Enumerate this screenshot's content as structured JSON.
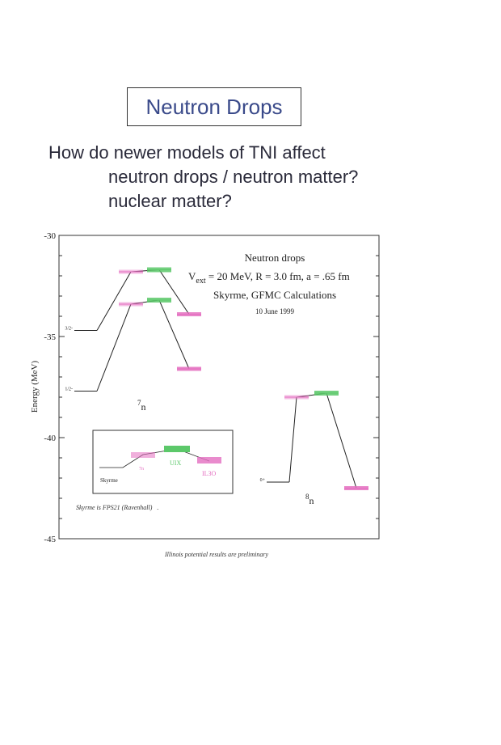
{
  "page": {
    "title": "Neutron Drops",
    "question_lines": [
      "How do newer models of TNI affect",
      "neutron drops / neutron matter?",
      "nuclear matter?"
    ],
    "footnote": "Illinois potential results are preliminary"
  },
  "chart_data": {
    "type": "line",
    "title": "Neutron drops",
    "subtitle_lines": [
      "V",
      "ext",
      " = 20 MeV, R = 3.0 fm, a = .65 fm"
    ],
    "subtitle2": "Skyrme, GFMC Calculations",
    "date": "10 June 1999",
    "ylabel": "Energy (MeV)",
    "ylim": [
      -45,
      -30
    ],
    "yticks": [
      -30,
      -35,
      -40,
      -45
    ],
    "colors": {
      "axis": "#333333",
      "line": "#222222",
      "green": "#5cc86a",
      "pink": "#e46ec0"
    },
    "series": [
      {
        "label": "3/2-",
        "points": [
          {
            "x": 1,
            "y": -34.7,
            "kind": "plain"
          },
          {
            "x": 2,
            "y": -31.8,
            "kind": "pink"
          },
          {
            "x": 3,
            "y": -31.7,
            "kind": "green"
          },
          {
            "x": 4,
            "y": -33.9,
            "kind": "pink"
          }
        ]
      },
      {
        "label": "1/2-",
        "points": [
          {
            "x": 1,
            "y": -37.7,
            "kind": "plain"
          },
          {
            "x": 2,
            "y": -33.4,
            "kind": "pink"
          },
          {
            "x": 3,
            "y": -33.2,
            "kind": "green"
          },
          {
            "x": 4,
            "y": -36.6,
            "kind": "pink"
          }
        ]
      },
      {
        "label": "0+",
        "points": [
          {
            "x": 1,
            "y": -42.2,
            "kind": "plain"
          },
          {
            "x": 2,
            "y": -38.0,
            "kind": "pink"
          },
          {
            "x": 3,
            "y": -37.8,
            "kind": "green"
          },
          {
            "x": 4,
            "y": -42.5,
            "kind": "pink"
          }
        ]
      }
    ],
    "nucleus_labels": [
      {
        "mass": "7",
        "symbol": "n"
      },
      {
        "mass": "8",
        "symbol": "n"
      }
    ],
    "legend": {
      "items": [
        "Skyrme",
        "7n",
        "UIX",
        "IL3O"
      ],
      "caption": "Skyrme is FPS21 (Ravenhall)",
      "caption_tail": "."
    }
  }
}
